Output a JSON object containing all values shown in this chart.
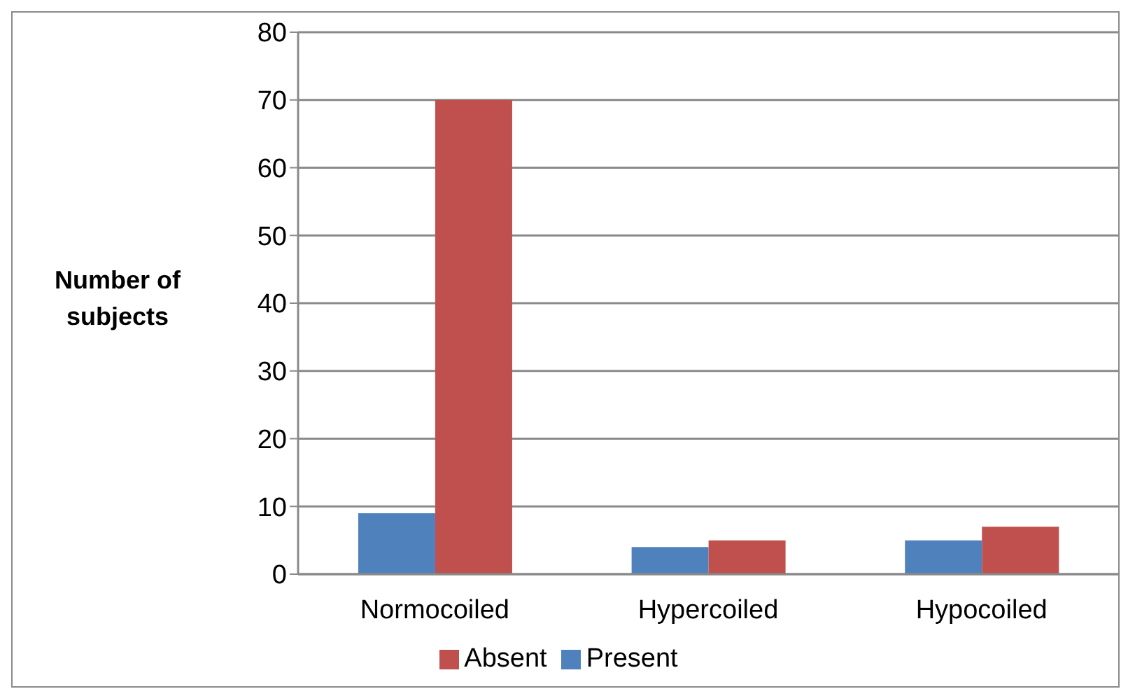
{
  "chart_data": {
    "type": "bar",
    "ylabel": "Number of subjects",
    "categories": [
      "Normocoiled",
      "Hypercoiled",
      "Hypocoiled"
    ],
    "series": [
      {
        "name": "Present",
        "color": "#4f81bd",
        "values": [
          9,
          4,
          5
        ]
      },
      {
        "name": "Absent",
        "color": "#c0504d",
        "values": [
          70,
          5,
          7
        ]
      }
    ],
    "ylim": [
      0,
      80
    ],
    "yticks": [
      0,
      10,
      20,
      30,
      40,
      50,
      60,
      70,
      80
    ],
    "grid": "y",
    "legend": "bottom"
  }
}
